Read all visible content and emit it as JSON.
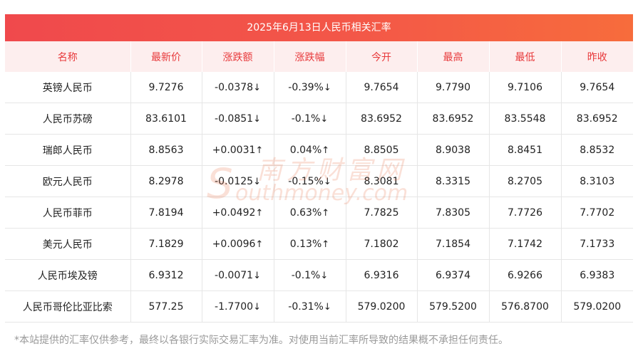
{
  "title": "2025年6月13日人民币相关汇率",
  "headers": [
    "名称",
    "最新价",
    "涨跌额",
    "涨跌幅",
    "今开",
    "最高",
    "最低",
    "昨收"
  ],
  "rows": [
    {
      "name": "英镑人民币",
      "latest": "9.7276",
      "change": "-0.0378",
      "change_arrow": "↓",
      "pct": "-0.39%",
      "pct_arrow": "↓",
      "dir": "down",
      "open": "9.7654",
      "high": "9.7790",
      "low": "9.7106",
      "prev": "9.7654"
    },
    {
      "name": "人民币苏磅",
      "latest": "83.6101",
      "change": "-0.0851",
      "change_arrow": "↓",
      "pct": "-0.1%",
      "pct_arrow": "↓",
      "dir": "down",
      "open": "83.6952",
      "high": "83.6952",
      "low": "83.5548",
      "prev": "83.6952"
    },
    {
      "name": "瑞郎人民币",
      "latest": "8.8563",
      "change": "+0.0031",
      "change_arrow": "↑",
      "pct": "0.04%",
      "pct_arrow": "↑",
      "dir": "up",
      "open": "8.8505",
      "high": "8.9038",
      "low": "8.8451",
      "prev": "8.8532"
    },
    {
      "name": "欧元人民币",
      "latest": "8.2978",
      "change": "-0.0125",
      "change_arrow": "↓",
      "pct": "-0.15%",
      "pct_arrow": "↓",
      "dir": "down",
      "open": "8.3081",
      "high": "8.3315",
      "low": "8.2705",
      "prev": "8.3103"
    },
    {
      "name": "人民币菲币",
      "latest": "7.8194",
      "change": "+0.0492",
      "change_arrow": "↑",
      "pct": "0.63%",
      "pct_arrow": "↑",
      "dir": "up",
      "open": "7.7825",
      "high": "7.8305",
      "low": "7.7726",
      "prev": "7.7702"
    },
    {
      "name": "美元人民币",
      "latest": "7.1829",
      "change": "+0.0096",
      "change_arrow": "↑",
      "pct": "0.13%",
      "pct_arrow": "↑",
      "dir": "up",
      "open": "7.1802",
      "high": "7.1854",
      "low": "7.1742",
      "prev": "7.1733"
    },
    {
      "name": "人民币埃及镑",
      "latest": "6.9312",
      "change": "-0.0071",
      "change_arrow": "↓",
      "pct": "-0.1%",
      "pct_arrow": "↓",
      "dir": "down",
      "open": "6.9316",
      "high": "6.9374",
      "low": "6.9266",
      "prev": "6.9383"
    },
    {
      "name": "人民币哥伦比亚比索",
      "latest": "577.25",
      "change": "-1.7700",
      "change_arrow": "↓",
      "pct": "-0.31%",
      "pct_arrow": "↓",
      "dir": "down",
      "open": "579.0200",
      "high": "579.5200",
      "low": "576.8700",
      "prev": "579.0200"
    }
  ],
  "watermark": {
    "cn": "南方财富网",
    "en": "outhmoney.com",
    "initial": "S"
  },
  "footnote": "*本站提供的汇率仅供参考，最终以各银行实际交易汇率为准。对使用当前汇率所导致的结果概不承担任何责任。",
  "colors": {
    "accent": "#f0494c",
    "up": "#e8393b",
    "down": "#1f8a1f",
    "header_bg": "#fdeeee"
  }
}
